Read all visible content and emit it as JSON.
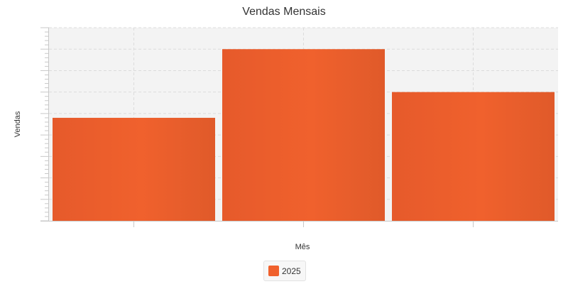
{
  "chart_data": {
    "type": "bar",
    "title": "Vendas Mensais",
    "xlabel": "Mês",
    "ylabel": "Vendas",
    "categories": [
      "",
      "",
      ""
    ],
    "series": [
      {
        "name": "2025",
        "values": [
          48,
          80,
          60
        ],
        "color": "#f0612d"
      }
    ],
    "ylim": [
      0,
      90
    ],
    "grid": true,
    "legend_position": "bottom-center",
    "plot_background": "#f3f3f3"
  }
}
